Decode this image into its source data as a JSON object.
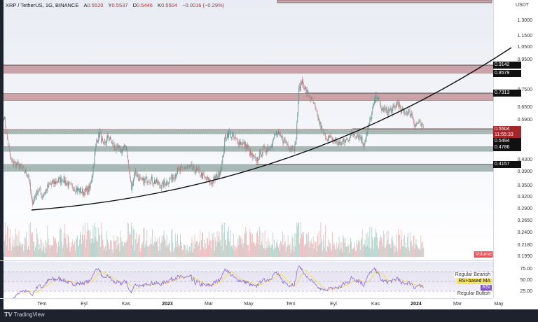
{
  "header": {
    "symbol": "XRP / TetherUS, 1G, BINANCE",
    "o_label": "A",
    "o": "0.5520",
    "h_label": "Y",
    "h": "0.5537",
    "l_label": "D",
    "l": "0.5446",
    "c_label": "K",
    "c": "0.5504",
    "change": "−0.0016 (−0.29%)"
  },
  "axis": {
    "currency": "USDT",
    "ticks": [
      "1.3000",
      "1.1500",
      "1.0500",
      "0.9500",
      "0.7500",
      "0.6500",
      "0.5900",
      "0.4300",
      "0.3900",
      "0.3500",
      "0.3200",
      "0.2900",
      "0.2650",
      "0.2400",
      "0.2180",
      "0.1990"
    ],
    "price_tags": [
      "0.9142",
      "0.8579",
      "0.7313",
      "0.5494",
      "0.4786",
      "0.4157"
    ],
    "current_price": "0.5504",
    "countdown": "11:55:33"
  },
  "x_labels": [
    "Tem",
    "Eyl",
    "Kas",
    "2023",
    "Mar",
    "May",
    "Tem",
    "Eyl",
    "Kas",
    "2024",
    "Mar",
    "May"
  ],
  "rsi": {
    "ticks": [
      "75.00",
      "50.00",
      "25.00"
    ],
    "legend": [
      "Regular Bearish",
      "RSI-based MA",
      "RSI",
      "Regular Bullish"
    ]
  },
  "volume_label": "Volume",
  "footer": {
    "brand": "TradingView"
  },
  "colors": {
    "up": "#5f8d87",
    "down": "#c08a8d",
    "resistance": "#c9a3a8",
    "support": "#a8b8b4",
    "rsi": "#7e57c2",
    "rsi_ma": "#f7e35a",
    "current": "#a3262b"
  },
  "chart_data": {
    "type": "candlestick",
    "y_scale": "log",
    "ylim": [
      0.199,
      1.3
    ],
    "resistance_zones": [
      [
        0.8579,
        0.9142
      ],
      [
        0.69,
        0.7313
      ]
    ],
    "support_zones": [
      [
        0.53,
        0.5494
      ],
      [
        0.461,
        0.4786
      ],
      [
        0.393,
        0.4157
      ]
    ],
    "close_path": [
      [
        "2022-05-06",
        0.613
      ],
      [
        "2022-05-11",
        0.504
      ],
      [
        "2022-05-16",
        0.427
      ],
      [
        "2022-06-01",
        0.404
      ],
      [
        "2022-06-11",
        0.382
      ],
      [
        "2022-06-16",
        0.306
      ],
      [
        "2022-06-26",
        0.342
      ],
      [
        "2022-07-01",
        0.323
      ],
      [
        "2022-07-11",
        0.351
      ],
      [
        "2022-07-21",
        0.361
      ],
      [
        "2022-07-31",
        0.371
      ],
      [
        "2022-08-10",
        0.351
      ],
      [
        "2022-08-20",
        0.342
      ],
      [
        "2022-08-30",
        0.333
      ],
      [
        "2022-09-09",
        0.342
      ],
      [
        "2022-09-14",
        0.404
      ],
      [
        "2022-09-19",
        0.504
      ],
      [
        "2022-09-24",
        0.533
      ],
      [
        "2022-09-29",
        0.477
      ],
      [
        "2022-10-06",
        0.518
      ],
      [
        "2022-10-15",
        0.477
      ],
      [
        "2022-10-25",
        0.464
      ],
      [
        "2022-11-02",
        0.477
      ],
      [
        "2022-11-05",
        0.404
      ],
      [
        "2022-11-09",
        0.342
      ],
      [
        "2022-11-14",
        0.393
      ],
      [
        "2022-11-24",
        0.361
      ],
      [
        "2022-12-04",
        0.371
      ],
      [
        "2022-12-14",
        0.361
      ],
      [
        "2022-12-24",
        0.351
      ],
      [
        "2023-01-06",
        0.371
      ],
      [
        "2023-01-16",
        0.393
      ],
      [
        "2023-01-26",
        0.404
      ],
      [
        "2023-02-05",
        0.404
      ],
      [
        "2023-02-15",
        0.393
      ],
      [
        "2023-02-25",
        0.371
      ],
      [
        "2023-03-07",
        0.361
      ],
      [
        "2023-03-17",
        0.382
      ],
      [
        "2023-03-22",
        0.415
      ],
      [
        "2023-03-27",
        0.518
      ],
      [
        "2023-04-01",
        0.533
      ],
      [
        "2023-04-11",
        0.504
      ],
      [
        "2023-04-21",
        0.49
      ],
      [
        "2023-04-29",
        0.477
      ],
      [
        "2023-05-03",
        0.451
      ],
      [
        "2023-05-11",
        0.427
      ],
      [
        "2023-05-21",
        0.464
      ],
      [
        "2023-05-31",
        0.477
      ],
      [
        "2023-06-10",
        0.533
      ],
      [
        "2023-06-20",
        0.504
      ],
      [
        "2023-06-30",
        0.477
      ],
      [
        "2023-07-08",
        0.477
      ],
      [
        "2023-07-13",
        0.745
      ],
      [
        "2023-07-18",
        0.81
      ],
      [
        "2023-07-23",
        0.745
      ],
      [
        "2023-08-02",
        0.685
      ],
      [
        "2023-08-07",
        0.631
      ],
      [
        "2023-08-12",
        0.58
      ],
      [
        "2023-08-17",
        0.533
      ],
      [
        "2023-08-22",
        0.518
      ],
      [
        "2023-09-01",
        0.504
      ],
      [
        "2023-09-11",
        0.49
      ],
      [
        "2023-09-21",
        0.504
      ],
      [
        "2023-10-01",
        0.533
      ],
      [
        "2023-10-11",
        0.518
      ],
      [
        "2023-10-16",
        0.49
      ],
      [
        "2023-10-21",
        0.533
      ],
      [
        "2023-10-26",
        0.596
      ],
      [
        "2023-10-31",
        0.668
      ],
      [
        "2023-11-05",
        0.725
      ],
      [
        "2023-11-10",
        0.649
      ],
      [
        "2023-11-20",
        0.631
      ],
      [
        "2023-11-30",
        0.649
      ],
      [
        "2023-12-05",
        0.685
      ],
      [
        "2023-12-10",
        0.631
      ],
      [
        "2023-12-20",
        0.631
      ],
      [
        "2023-12-27",
        0.613
      ],
      [
        "2023-12-30",
        0.565
      ],
      [
        "2024-01-04",
        0.58
      ],
      [
        "2024-01-12",
        0.5504
      ]
    ]
  }
}
